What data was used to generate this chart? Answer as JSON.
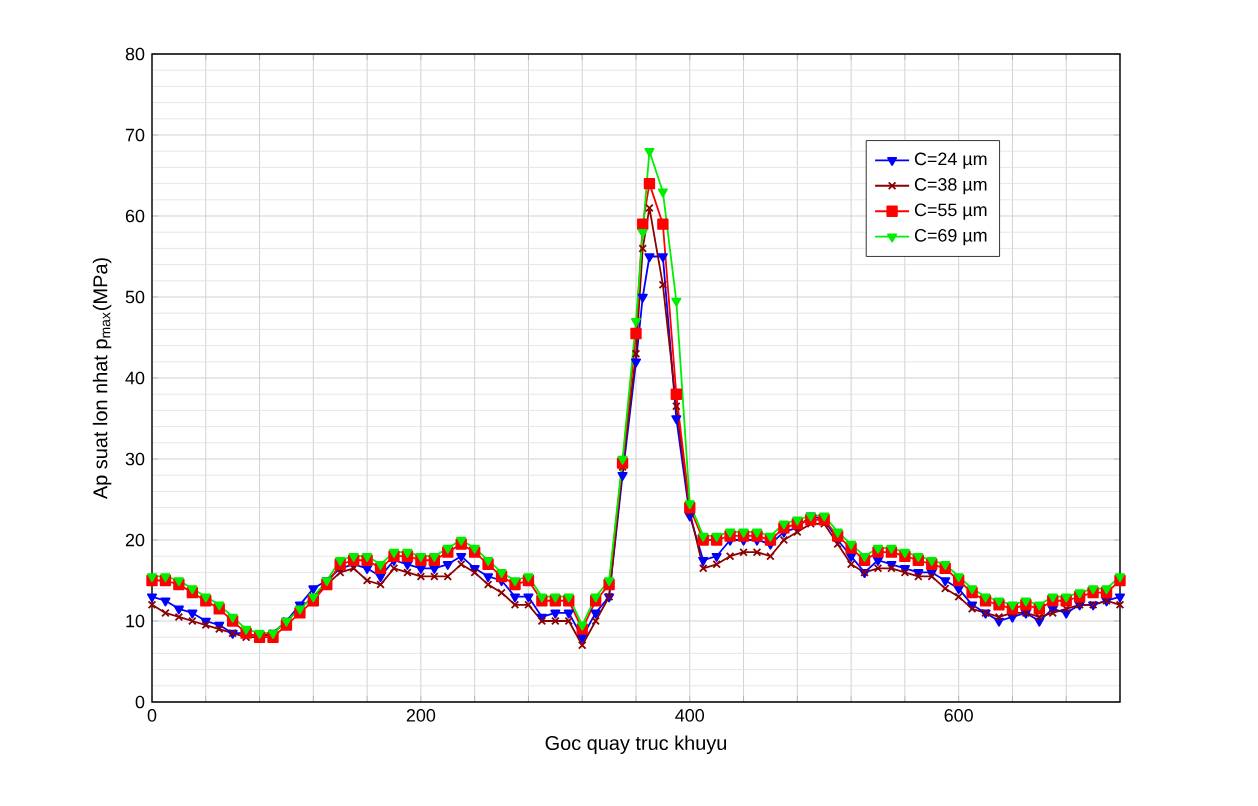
{
  "chart_data": {
    "type": "line",
    "xlabel": "Goc quay truc khuyu",
    "ylabel": "Ap suat lon nhat p$_{max}$(MPa)",
    "x": [
      0,
      10,
      20,
      30,
      40,
      50,
      60,
      70,
      80,
      90,
      100,
      110,
      120,
      130,
      140,
      150,
      160,
      170,
      180,
      190,
      200,
      210,
      220,
      230,
      240,
      250,
      260,
      270,
      280,
      290,
      300,
      310,
      320,
      330,
      340,
      350,
      360,
      365,
      370,
      380,
      390,
      400,
      410,
      420,
      430,
      440,
      450,
      460,
      470,
      480,
      490,
      500,
      510,
      520,
      530,
      540,
      550,
      560,
      570,
      580,
      590,
      600,
      610,
      620,
      630,
      640,
      650,
      660,
      670,
      680,
      690,
      700,
      710,
      720
    ],
    "xlim": [
      0,
      720
    ],
    "xticks": [
      0,
      {
        "value": 40,
        "label": null
      },
      {
        "value": 80,
        "label": null
      },
      {
        "value": 120,
        "label": null
      },
      {
        "value": 160,
        "label": null
      },
      200,
      {
        "value": 240,
        "label": null
      },
      {
        "value": 280,
        "label": null
      },
      {
        "value": 320,
        "label": null
      },
      {
        "value": 360,
        "label": null
      },
      400,
      {
        "value": 440,
        "label": null
      },
      {
        "value": 480,
        "label": null
      },
      {
        "value": 520,
        "label": null
      },
      {
        "value": 560,
        "label": null
      },
      600,
      {
        "value": 640,
        "label": null
      },
      {
        "value": 680,
        "label": null
      },
      {
        "value": 720,
        "label": null
      }
    ],
    "ylim": [
      0,
      80
    ],
    "yticks": [
      0,
      10,
      20,
      30,
      40,
      50,
      60,
      70,
      80
    ],
    "grid": true,
    "legend": "top right",
    "series": [
      {
        "name": "C=24 µm",
        "color": "#0000ff",
        "marker": "triangle",
        "values": [
          13,
          12.5,
          11.5,
          11,
          10,
          9.5,
          8.5,
          8.5,
          8,
          8.5,
          10,
          12,
          14,
          15,
          16.5,
          17,
          16.5,
          15.5,
          17.5,
          17,
          16.5,
          16.5,
          17,
          18,
          16.5,
          15.5,
          15,
          13,
          13,
          10.5,
          11,
          11,
          8,
          11,
          13,
          28,
          42,
          50,
          55,
          55,
          35,
          23,
          17.5,
          18,
          20,
          20,
          20,
          19.5,
          21,
          21.5,
          23,
          22.5,
          20,
          18,
          16,
          17.5,
          17,
          16.5,
          16,
          16,
          15,
          14,
          12,
          11,
          10,
          10.5,
          11,
          10,
          11.5,
          11,
          12,
          12,
          12.5,
          13
        ]
      },
      {
        "name": "C=38 µm",
        "color": "#8b0000",
        "marker": "cross",
        "values": [
          12,
          11,
          10.5,
          10,
          9.5,
          9,
          8.5,
          8,
          8,
          8.5,
          10,
          11.5,
          13,
          14.5,
          16,
          16.5,
          15,
          14.5,
          16.5,
          16,
          15.5,
          15.5,
          15.5,
          17,
          16,
          14.5,
          13.5,
          12,
          12,
          10,
          10,
          10,
          7,
          10,
          13,
          29,
          43,
          56,
          61,
          51.5,
          36.5,
          23.5,
          16.5,
          17,
          18,
          18.5,
          18.5,
          18,
          20,
          21,
          22,
          22,
          19.5,
          17,
          16,
          16.5,
          16.5,
          16,
          15.5,
          15.5,
          14,
          13,
          11.5,
          11,
          10.5,
          11,
          11,
          10.5,
          11,
          11.5,
          12,
          12,
          12.5,
          12
        ]
      },
      {
        "name": "C=55 µm",
        "color": "#ff0000",
        "marker": "square",
        "values": [
          15,
          15,
          14.5,
          13.5,
          12.5,
          11.5,
          10,
          8.5,
          8,
          8,
          9.5,
          11,
          12.5,
          14.5,
          17,
          17.5,
          17.5,
          16.5,
          18,
          18,
          17.5,
          17.5,
          18.5,
          19.5,
          18.5,
          17,
          15.5,
          14.5,
          15,
          12.5,
          12.5,
          12.5,
          9,
          12.5,
          14.5,
          29.5,
          45.5,
          59,
          64,
          59,
          38,
          24,
          20,
          20,
          20.5,
          20.5,
          20.5,
          20,
          21.5,
          22,
          22.5,
          22.5,
          20.5,
          19,
          17.5,
          18.5,
          18.5,
          18,
          17.5,
          17,
          16.5,
          15,
          13.5,
          12.5,
          12,
          11.5,
          12,
          11.5,
          12.5,
          12.5,
          13,
          13.5,
          13.5,
          15
        ]
      },
      {
        "name": "C=69 µm",
        "color": "#00ee00",
        "marker": "triangle",
        "values": [
          15.5,
          15.5,
          15,
          14,
          13,
          12,
          10.5,
          9,
          8.5,
          8.5,
          10,
          11.5,
          13,
          15,
          17.5,
          18,
          18,
          17,
          18.5,
          18.5,
          18,
          18,
          19,
          20,
          19,
          17.5,
          16,
          15,
          15.5,
          13,
          13,
          13,
          9.5,
          13,
          15,
          30,
          47,
          58,
          68,
          63,
          49.5,
          24.5,
          20.5,
          20.5,
          21,
          21,
          21,
          20.5,
          22,
          22.5,
          23,
          23,
          21,
          19.5,
          18,
          19,
          19,
          18.5,
          18,
          17.5,
          17,
          15.5,
          14,
          13,
          12.5,
          12,
          12.5,
          12,
          13,
          13,
          13.5,
          14,
          14,
          15.5
        ]
      }
    ]
  }
}
